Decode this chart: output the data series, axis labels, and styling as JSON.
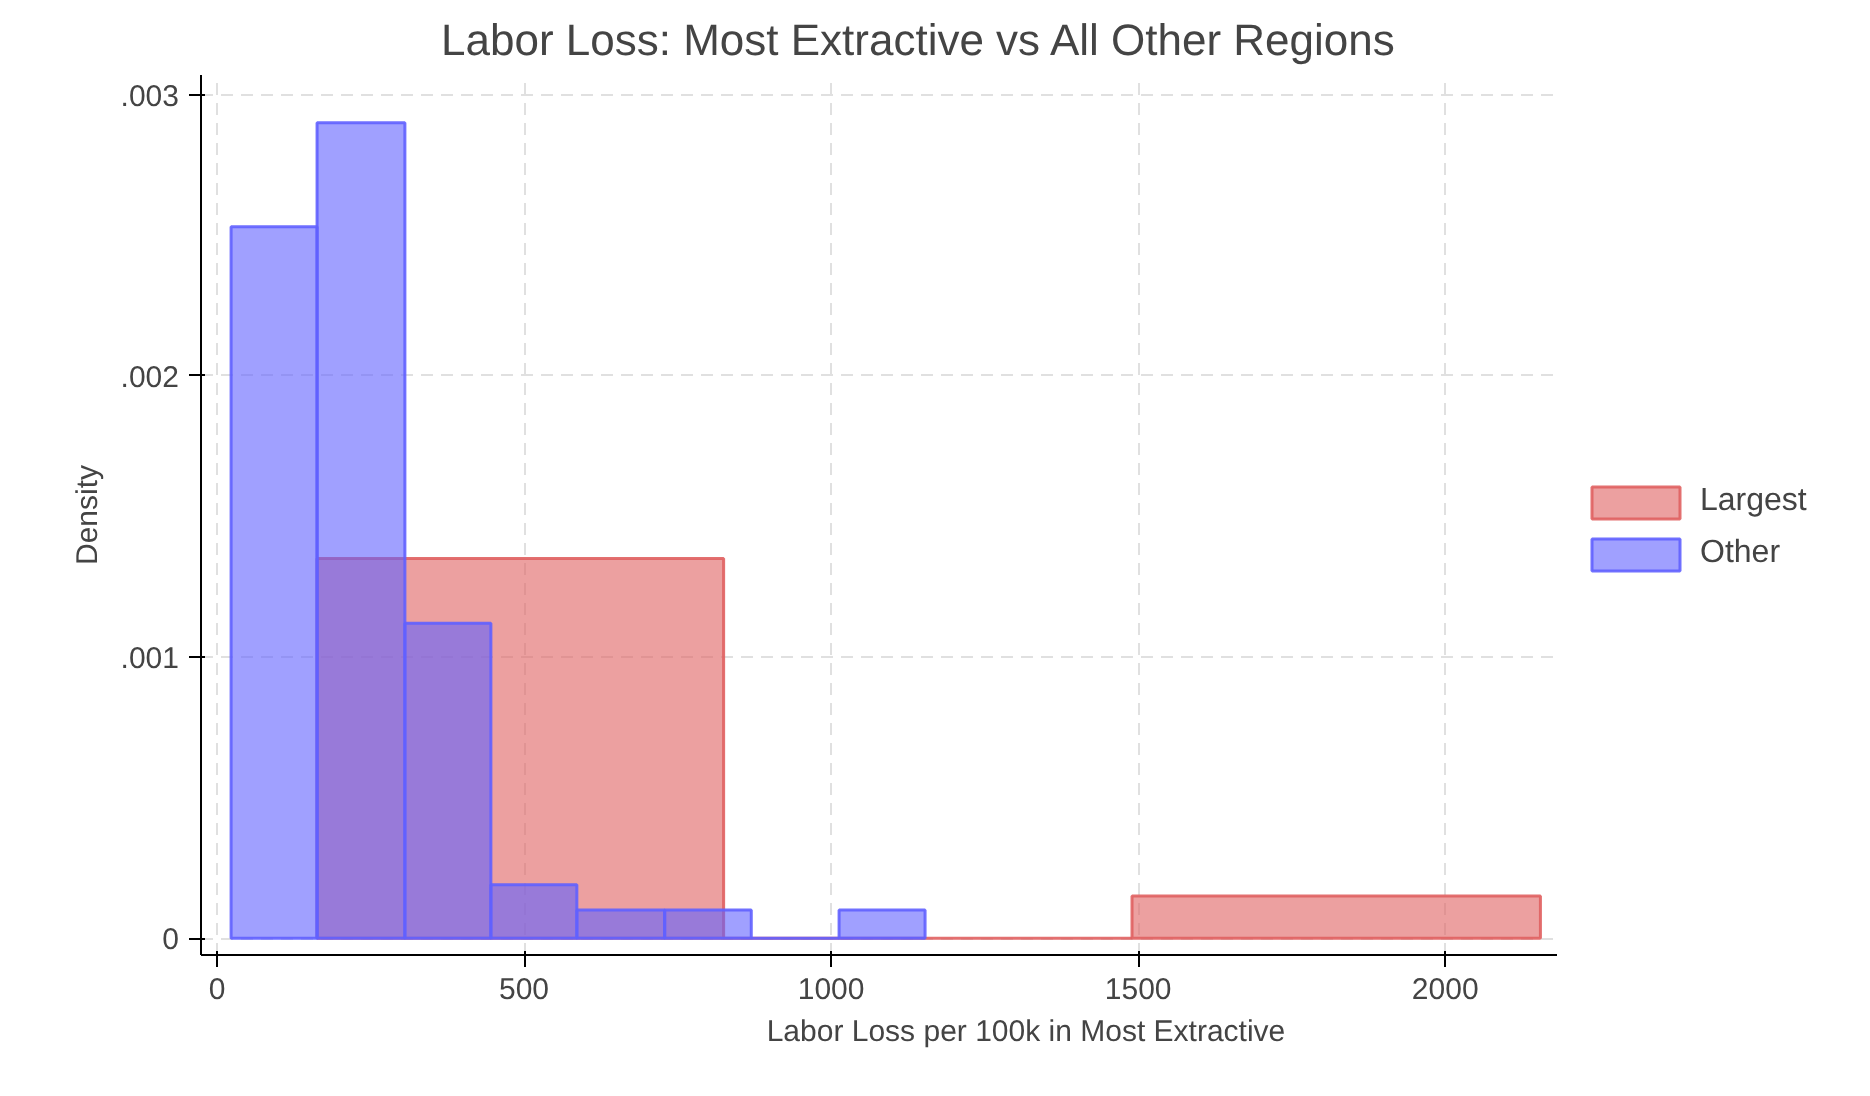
{
  "chart_data": {
    "type": "histogram",
    "title": "Labor Loss: Most Extractive vs All Other Regions",
    "xlabel": "Labor Loss per 100k in Most Extractive",
    "ylabel": "Density",
    "series": [
      {
        "name": "Largest",
        "color": "#e06060",
        "bins": [
          163,
          825,
          1490,
          2155
        ],
        "values": [
          0.00135,
          0,
          0.00015
        ]
      },
      {
        "name": "Other",
        "color": "#6060ff",
        "values": [
          0.00253,
          0.0029,
          0.00112,
          0.00019,
          0.0001,
          0.0001,
          0,
          0.0001
        ]
      }
    ],
    "bins": [
      23,
      163,
      306,
      446,
      586,
      729,
      870,
      1013,
      1153
    ],
    "xlim": [
      -26,
      2182
    ],
    "xticks": [
      0,
      500,
      1000,
      1500,
      2000
    ],
    "ylim": [
      -6e-05,
      0.00307
    ],
    "yticks": [
      {
        "value": 0,
        "label": "0"
      },
      {
        "value": 0.001,
        "label": ".001"
      },
      {
        "value": 0.002,
        "label": ".002"
      },
      {
        "value": 0.003,
        "label": ".003"
      }
    ],
    "grid": true,
    "legend": "right"
  }
}
